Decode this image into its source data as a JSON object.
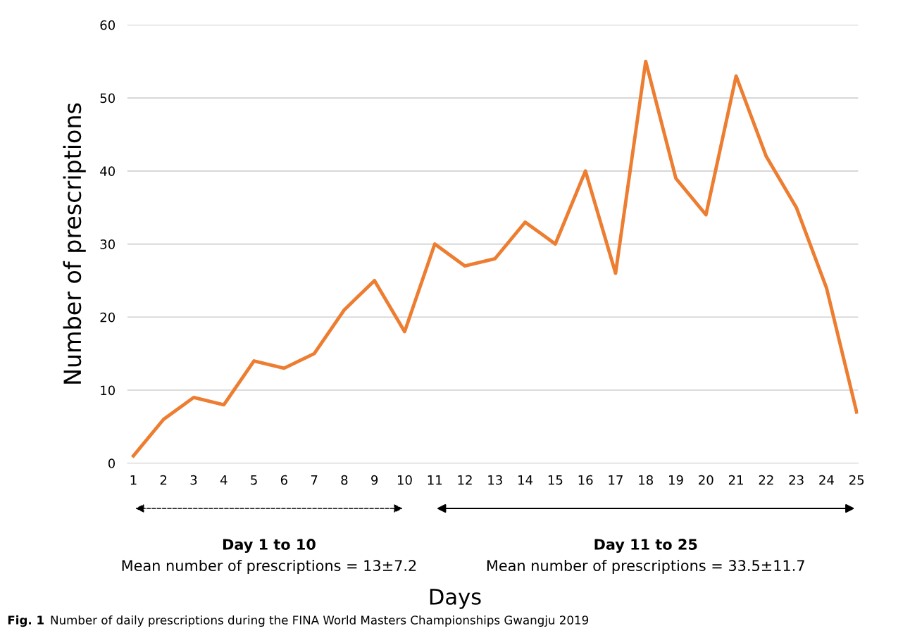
{
  "chart_data": {
    "type": "line",
    "xlabel": "Days",
    "ylabel": "Number of prescriptions",
    "categories": [
      "1",
      "2",
      "3",
      "4",
      "5",
      "6",
      "7",
      "8",
      "9",
      "10",
      "11",
      "12",
      "13",
      "14",
      "15",
      "16",
      "17",
      "18",
      "19",
      "20",
      "21",
      "22",
      "23",
      "24",
      "25"
    ],
    "series": [
      {
        "color": "#ed7d31",
        "values": [
          1,
          6,
          9,
          8,
          14,
          13,
          15,
          21,
          25,
          18,
          30,
          27,
          28,
          33,
          30,
          40,
          26,
          55,
          39,
          34,
          53,
          42,
          35,
          24,
          7
        ]
      }
    ],
    "ylim": [
      0,
      60
    ],
    "yticks": [
      0,
      10,
      20,
      30,
      40,
      50,
      60
    ],
    "grid": "y",
    "marker": "none",
    "line_style": "solid",
    "annotations": [
      "Day 1 to 10",
      "Mean number of prescriptions = 13±7.2",
      "Day 11 to 25",
      "Mean number of prescriptions = 33.5±11.7",
      "Fig. 1",
      "Number of daily prescriptions during the FINA World Masters Championships Gwangju 2019"
    ]
  }
}
